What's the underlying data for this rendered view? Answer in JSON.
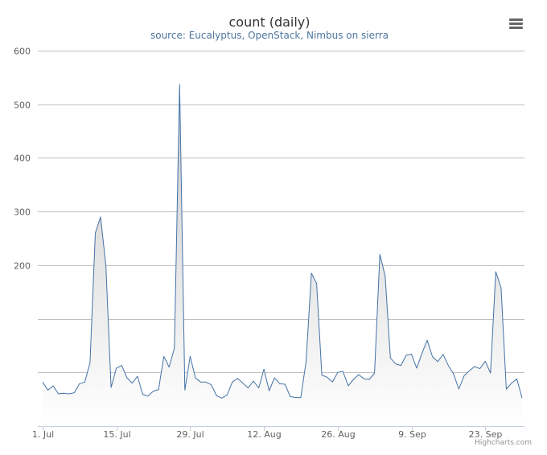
{
  "chart_data": {
    "type": "area",
    "title": "count (daily)",
    "subtitle": "source: Eucalyptus, OpenStack, Nimbus on sierra",
    "xlabel": "",
    "ylabel": "",
    "ylim": [
      -100,
      600
    ],
    "y_ticks": [
      0,
      100,
      200,
      300,
      400,
      500,
      600
    ],
    "y_tick_labels": [
      "",
      "",
      "200",
      "300",
      "400",
      "500",
      "600"
    ],
    "x_start": "2013-07-01",
    "x_tick_labels": [
      "1. Jul",
      "15. Jul",
      "29. Jul",
      "12. Aug",
      "26. Aug",
      "9. Sep",
      "23. Sep"
    ],
    "x_tick_days": [
      0,
      14,
      28,
      42,
      56,
      70,
      84
    ],
    "grid": true,
    "legend": "none",
    "colors": {
      "line": "#4572a7",
      "fill_top": "#c8c8c8",
      "fill_bottom": "#ffffff",
      "grid": "#c0c0c0"
    },
    "series": [
      {
        "values": [
          -18,
          -33,
          -25,
          -40,
          -39,
          -40,
          -38,
          -21,
          -18,
          18,
          260,
          290,
          200,
          -28,
          8,
          13,
          -10,
          -20,
          -7,
          -41,
          -44,
          -35,
          -32,
          30,
          10,
          45,
          537,
          -33,
          30,
          -10,
          -18,
          -18,
          -23,
          -43,
          -48,
          -42,
          -18,
          -11,
          -20,
          -29,
          -16,
          -29,
          6,
          -34,
          -10,
          -21,
          -22,
          -45,
          -47,
          -47,
          20,
          185,
          166,
          -5,
          -9,
          -18,
          0,
          2,
          -25,
          -13,
          -4,
          -12,
          -13,
          -1,
          220,
          180,
          27,
          16,
          13,
          32,
          34,
          8,
          36,
          60,
          29,
          20,
          34,
          13,
          -3,
          -31,
          -6,
          3,
          11,
          7,
          21,
          -1,
          188,
          158,
          -31,
          -20,
          -12,
          -48
        ]
      }
    ],
    "credits": "Highcharts.com"
  },
  "icons": {
    "menu": "hamburger-menu-icon"
  }
}
